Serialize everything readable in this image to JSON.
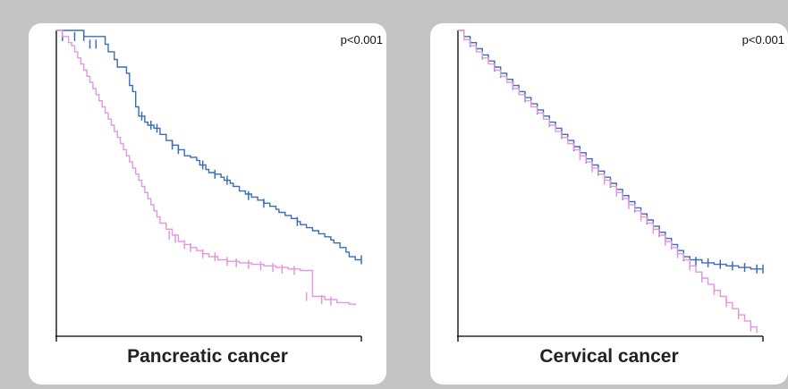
{
  "colors": {
    "group_a": "#3b6cb7",
    "group_b": "#e098e0",
    "axis": "#000000",
    "background": "#c3c3c3"
  },
  "chart_data": [
    {
      "type": "line",
      "title": "Pancreatic cancer",
      "annotation": "p<0.001",
      "xlim": [
        0,
        100
      ],
      "ylim": [
        0,
        1
      ],
      "grid": false,
      "series": [
        {
          "color": "#3b6cb7",
          "steps": [
            [
              0,
              1.0
            ],
            [
              9,
              0.98
            ],
            [
              16,
              0.955
            ],
            [
              17,
              0.93
            ],
            [
              19,
              0.905
            ],
            [
              20,
              0.88
            ],
            [
              23,
              0.86
            ],
            [
              24,
              0.82
            ],
            [
              25,
              0.8
            ],
            [
              26,
              0.75
            ],
            [
              27,
              0.72
            ],
            [
              29,
              0.7
            ],
            [
              30,
              0.69
            ],
            [
              32,
              0.68
            ],
            [
              34,
              0.66
            ],
            [
              36,
              0.64
            ],
            [
              38,
              0.625
            ],
            [
              40,
              0.61
            ],
            [
              42,
              0.59
            ],
            [
              44,
              0.585
            ],
            [
              46,
              0.575
            ],
            [
              47,
              0.56
            ],
            [
              49,
              0.545
            ],
            [
              50,
              0.535
            ],
            [
              52,
              0.53
            ],
            [
              54,
              0.52
            ],
            [
              55,
              0.51
            ],
            [
              57,
              0.5
            ],
            [
              58,
              0.49
            ],
            [
              60,
              0.475
            ],
            [
              62,
              0.465
            ],
            [
              64,
              0.455
            ],
            [
              66,
              0.445
            ],
            [
              68,
              0.435
            ],
            [
              70,
              0.425
            ],
            [
              72,
              0.415
            ],
            [
              73,
              0.405
            ],
            [
              75,
              0.395
            ],
            [
              77,
              0.385
            ],
            [
              79,
              0.375
            ],
            [
              80,
              0.365
            ],
            [
              82,
              0.355
            ],
            [
              84,
              0.345
            ],
            [
              86,
              0.335
            ],
            [
              88,
              0.325
            ],
            [
              90,
              0.315
            ],
            [
              91,
              0.305
            ],
            [
              93,
              0.29
            ],
            [
              95,
              0.275
            ],
            [
              96,
              0.26
            ],
            [
              98,
              0.25
            ],
            [
              100,
              0.25
            ]
          ],
          "censor": [
            [
              2,
              0.98
            ],
            [
              6,
              0.98
            ],
            [
              9,
              0.98
            ],
            [
              11,
              0.955
            ],
            [
              13,
              0.955
            ],
            [
              28,
              0.72
            ],
            [
              31,
              0.69
            ],
            [
              33,
              0.68
            ],
            [
              38,
              0.625
            ],
            [
              40,
              0.61
            ],
            [
              48,
              0.56
            ],
            [
              52,
              0.53
            ],
            [
              56,
              0.51
            ],
            [
              63,
              0.46
            ],
            [
              68,
              0.435
            ],
            [
              79,
              0.375
            ],
            [
              100,
              0.25
            ]
          ]
        },
        {
          "color": "#e098e0",
          "steps": [
            [
              0,
              1.0
            ],
            [
              2,
              0.98
            ],
            [
              4,
              0.96
            ],
            [
              5,
              0.95
            ],
            [
              6,
              0.93
            ],
            [
              7,
              0.91
            ],
            [
              8,
              0.89
            ],
            [
              9,
              0.87
            ],
            [
              10,
              0.85
            ],
            [
              11,
              0.83
            ],
            [
              12,
              0.81
            ],
            [
              13,
              0.79
            ],
            [
              14,
              0.77
            ],
            [
              15,
              0.75
            ],
            [
              16,
              0.73
            ],
            [
              17,
              0.71
            ],
            [
              18,
              0.69
            ],
            [
              19,
              0.67
            ],
            [
              20,
              0.65
            ],
            [
              21,
              0.63
            ],
            [
              22,
              0.61
            ],
            [
              23,
              0.59
            ],
            [
              24,
              0.57
            ],
            [
              25,
              0.55
            ],
            [
              26,
              0.53
            ],
            [
              27,
              0.51
            ],
            [
              28,
              0.49
            ],
            [
              29,
              0.47
            ],
            [
              30,
              0.45
            ],
            [
              31,
              0.43
            ],
            [
              32,
              0.41
            ],
            [
              33,
              0.39
            ],
            [
              34,
              0.37
            ],
            [
              36,
              0.35
            ],
            [
              38,
              0.33
            ],
            [
              40,
              0.31
            ],
            [
              42,
              0.3
            ],
            [
              44,
              0.29
            ],
            [
              46,
              0.28
            ],
            [
              48,
              0.27
            ],
            [
              50,
              0.26
            ],
            [
              53,
              0.25
            ],
            [
              56,
              0.245
            ],
            [
              60,
              0.24
            ],
            [
              64,
              0.235
            ],
            [
              68,
              0.23
            ],
            [
              72,
              0.225
            ],
            [
              76,
              0.22
            ],
            [
              80,
              0.215
            ],
            [
              84,
              0.13
            ],
            [
              88,
              0.12
            ],
            [
              92,
              0.11
            ],
            [
              96,
              0.105
            ],
            [
              98,
              0.1
            ]
          ],
          "censor": [
            [
              37,
              0.33
            ],
            [
              39,
              0.32
            ],
            [
              42,
              0.3
            ],
            [
              44,
              0.29
            ],
            [
              48,
              0.27
            ],
            [
              52,
              0.26
            ],
            [
              56,
              0.245
            ],
            [
              59,
              0.24
            ],
            [
              63,
              0.235
            ],
            [
              67,
              0.23
            ],
            [
              71,
              0.225
            ],
            [
              74,
              0.22
            ],
            [
              78,
              0.215
            ],
            [
              82,
              0.13
            ],
            [
              87,
              0.12
            ],
            [
              90,
              0.115
            ]
          ]
        }
      ]
    },
    {
      "type": "line",
      "title": "Cervical cancer",
      "annotation": "p<0.001",
      "xlim": [
        0,
        100
      ],
      "ylim": [
        0,
        1
      ],
      "grid": false,
      "series": [
        {
          "color": "#3b6cb7",
          "steps": [
            [
              0,
              1.0
            ],
            [
              2,
              0.98
            ],
            [
              4,
              0.96
            ],
            [
              6,
              0.94
            ],
            [
              8,
              0.92
            ],
            [
              10,
              0.9
            ],
            [
              12,
              0.88
            ],
            [
              14,
              0.86
            ],
            [
              16,
              0.84
            ],
            [
              18,
              0.82
            ],
            [
              20,
              0.8
            ],
            [
              22,
              0.78
            ],
            [
              24,
              0.76
            ],
            [
              26,
              0.74
            ],
            [
              28,
              0.72
            ],
            [
              30,
              0.7
            ],
            [
              32,
              0.68
            ],
            [
              34,
              0.66
            ],
            [
              36,
              0.64
            ],
            [
              38,
              0.62
            ],
            [
              40,
              0.6
            ],
            [
              42,
              0.58
            ],
            [
              44,
              0.56
            ],
            [
              46,
              0.54
            ],
            [
              48,
              0.52
            ],
            [
              50,
              0.5
            ],
            [
              52,
              0.48
            ],
            [
              54,
              0.46
            ],
            [
              56,
              0.44
            ],
            [
              58,
              0.42
            ],
            [
              60,
              0.4
            ],
            [
              62,
              0.38
            ],
            [
              64,
              0.36
            ],
            [
              66,
              0.34
            ],
            [
              68,
              0.32
            ],
            [
              70,
              0.3
            ],
            [
              72,
              0.28
            ],
            [
              74,
              0.26
            ],
            [
              76,
              0.25
            ],
            [
              80,
              0.24
            ],
            [
              84,
              0.235
            ],
            [
              88,
              0.23
            ],
            [
              92,
              0.225
            ],
            [
              96,
              0.22
            ],
            [
              100,
              0.22
            ]
          ],
          "censor": [
            [
              4,
              0.96
            ],
            [
              8,
              0.92
            ],
            [
              12,
              0.88
            ],
            [
              14,
              0.86
            ],
            [
              18,
              0.82
            ],
            [
              22,
              0.78
            ],
            [
              26,
              0.74
            ],
            [
              30,
              0.7
            ],
            [
              34,
              0.66
            ],
            [
              38,
              0.62
            ],
            [
              42,
              0.58
            ],
            [
              46,
              0.54
            ],
            [
              50,
              0.5
            ],
            [
              54,
              0.46
            ],
            [
              58,
              0.42
            ],
            [
              62,
              0.38
            ],
            [
              66,
              0.34
            ],
            [
              70,
              0.3
            ],
            [
              74,
              0.26
            ],
            [
              78,
              0.245
            ],
            [
              82,
              0.24
            ],
            [
              86,
              0.235
            ],
            [
              90,
              0.23
            ],
            [
              94,
              0.225
            ],
            [
              98,
              0.22
            ],
            [
              100,
              0.22
            ]
          ]
        },
        {
          "color": "#e098e0",
          "steps": [
            [
              0,
              1.0
            ],
            [
              2,
              0.97
            ],
            [
              4,
              0.95
            ],
            [
              6,
              0.93
            ],
            [
              8,
              0.91
            ],
            [
              10,
              0.89
            ],
            [
              12,
              0.87
            ],
            [
              14,
              0.85
            ],
            [
              16,
              0.83
            ],
            [
              18,
              0.81
            ],
            [
              20,
              0.79
            ],
            [
              22,
              0.77
            ],
            [
              24,
              0.75
            ],
            [
              26,
              0.73
            ],
            [
              28,
              0.71
            ],
            [
              30,
              0.69
            ],
            [
              32,
              0.67
            ],
            [
              34,
              0.65
            ],
            [
              36,
              0.63
            ],
            [
              38,
              0.61
            ],
            [
              40,
              0.59
            ],
            [
              42,
              0.57
            ],
            [
              44,
              0.55
            ],
            [
              46,
              0.53
            ],
            [
              48,
              0.51
            ],
            [
              50,
              0.49
            ],
            [
              52,
              0.47
            ],
            [
              54,
              0.45
            ],
            [
              56,
              0.43
            ],
            [
              58,
              0.41
            ],
            [
              60,
              0.39
            ],
            [
              62,
              0.37
            ],
            [
              64,
              0.35
            ],
            [
              66,
              0.33
            ],
            [
              68,
              0.31
            ],
            [
              70,
              0.29
            ],
            [
              72,
              0.27
            ],
            [
              74,
              0.25
            ],
            [
              76,
              0.23
            ],
            [
              78,
              0.21
            ],
            [
              80,
              0.19
            ],
            [
              82,
              0.17
            ],
            [
              84,
              0.15
            ],
            [
              86,
              0.13
            ],
            [
              88,
              0.11
            ],
            [
              90,
              0.09
            ],
            [
              92,
              0.07
            ],
            [
              94,
              0.05
            ],
            [
              96,
              0.03
            ],
            [
              98,
              0.01
            ]
          ],
          "censor": [
            [
              40,
              0.59
            ],
            [
              44,
              0.55
            ],
            [
              48,
              0.51
            ],
            [
              52,
              0.47
            ],
            [
              56,
              0.43
            ],
            [
              60,
              0.39
            ],
            [
              64,
              0.35
            ],
            [
              68,
              0.31
            ],
            [
              72,
              0.27
            ],
            [
              76,
              0.23
            ],
            [
              80,
              0.19
            ],
            [
              84,
              0.15
            ],
            [
              88,
              0.11
            ],
            [
              92,
              0.07
            ],
            [
              96,
              0.03
            ]
          ]
        }
      ]
    }
  ]
}
